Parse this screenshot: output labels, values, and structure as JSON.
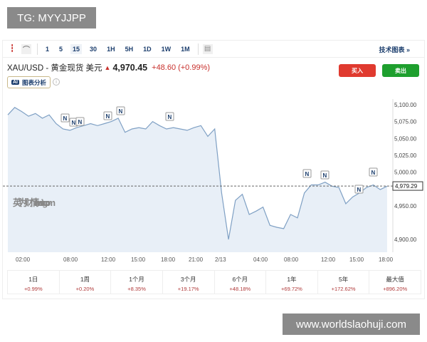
{
  "watermarks": {
    "top_left": "TG: MYYJJPP",
    "bottom_right": "www.worldslaohuji.com"
  },
  "toolbar": {
    "icons": [
      "candlestick-icon",
      "area-chart-icon",
      "calendar-icon"
    ],
    "intervals": [
      "1",
      "5",
      "15",
      "30",
      "1H",
      "5H",
      "1D",
      "1W",
      "1M"
    ],
    "active_interval": "15",
    "tech_chart": "技术图表 »"
  },
  "quote": {
    "symbol": "XAU/USD - 黄金现货 美元",
    "direction": "up",
    "price": "4,970.45",
    "change": "+48.60",
    "change_pct": "(+0.99%)"
  },
  "ai_button": {
    "badge": "AI",
    "label": "图表分析"
  },
  "info_icon": "i",
  "buy_label": "买入",
  "sell_label": "卖出",
  "colors": {
    "up": "#c8302c",
    "buy": "#e03a2f",
    "sell": "#1e9f2e",
    "line": "#7fa0c4",
    "fill": "#e8eff7"
  },
  "chart_data": {
    "type": "area",
    "ylim": [
      4880,
      5110
    ],
    "yticks": [
      "5,100.00",
      "5,075.00",
      "5,050.00",
      "5,025.00",
      "5,000.00",
      "4,950.00",
      "4,900.00"
    ],
    "ytick_values": [
      5100,
      5075,
      5050,
      5025,
      5000,
      4950,
      4900
    ],
    "xticks": [
      "02:00",
      "08:00",
      "12:00",
      "15:00",
      "18:00",
      "21:00",
      "2/13",
      "04:00",
      "08:00",
      "12:00",
      "15:00",
      "18:00"
    ],
    "current_price": 4979.29,
    "current_label": "4,979.29",
    "values": [
      5085,
      5096,
      5090,
      5083,
      5087,
      5080,
      5085,
      5072,
      5064,
      5062,
      5066,
      5069,
      5072,
      5069,
      5072,
      5075,
      5080,
      5059,
      5064,
      5066,
      5064,
      5075,
      5069,
      5064,
      5066,
      5064,
      5062,
      5066,
      5069,
      5053,
      5064,
      4969,
      4900,
      4958,
      4967,
      4937,
      4942,
      4948,
      4921,
      4918,
      4916,
      4937,
      4932,
      4969,
      4981,
      4981,
      4985,
      4979,
      4977,
      4953,
      4963,
      4969,
      4977,
      4981,
      4974,
      4979
    ],
    "news_marker": "N",
    "logo": "英为财情 Investing.com"
  },
  "periods": [
    {
      "label": "1日",
      "value": "+0.99%"
    },
    {
      "label": "1周",
      "value": "+0.20%"
    },
    {
      "label": "1个月",
      "value": "+8.35%"
    },
    {
      "label": "3个月",
      "value": "+19.17%"
    },
    {
      "label": "6个月",
      "value": "+48.18%"
    },
    {
      "label": "1年",
      "value": "+69.72%"
    },
    {
      "label": "5年",
      "value": "+172.62%"
    },
    {
      "label": "最大值",
      "value": "+896.20%"
    }
  ]
}
